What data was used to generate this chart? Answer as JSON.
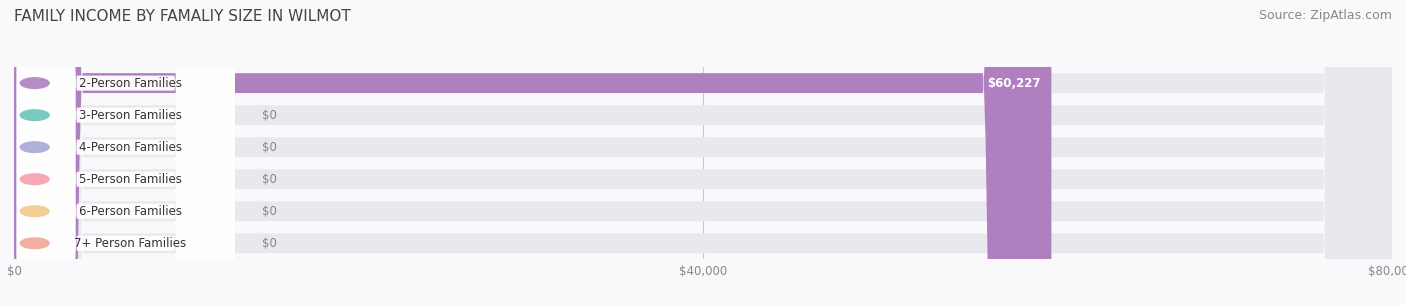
{
  "title": "FAMILY INCOME BY FAMALIY SIZE IN WILMOT",
  "source": "Source: ZipAtlas.com",
  "categories": [
    "2-Person Families",
    "3-Person Families",
    "4-Person Families",
    "5-Person Families",
    "6-Person Families",
    "7+ Person Families"
  ],
  "values": [
    60227,
    0,
    0,
    0,
    0,
    0
  ],
  "bar_colors": [
    "#b07fc0",
    "#6dc4bb",
    "#a8a8d8",
    "#f4a0b0",
    "#f5c98a",
    "#f0a898"
  ],
  "bar_bg_color": "#e8e8ee",
  "xlim": [
    0,
    80000
  ],
  "xtick_values": [
    0,
    40000,
    80000
  ],
  "xtick_labels": [
    "$0",
    "$40,000",
    "$80,000"
  ],
  "value_label_color_main": "#ffffff",
  "value_label_color_zero": "#888888",
  "background_color": "#f9f9fb",
  "grid_color": "#cccccc",
  "label_bg_color": "#ffffff",
  "title_fontsize": 11,
  "source_fontsize": 9,
  "bar_label_fontsize": 8.5,
  "value_fontsize": 8.5
}
